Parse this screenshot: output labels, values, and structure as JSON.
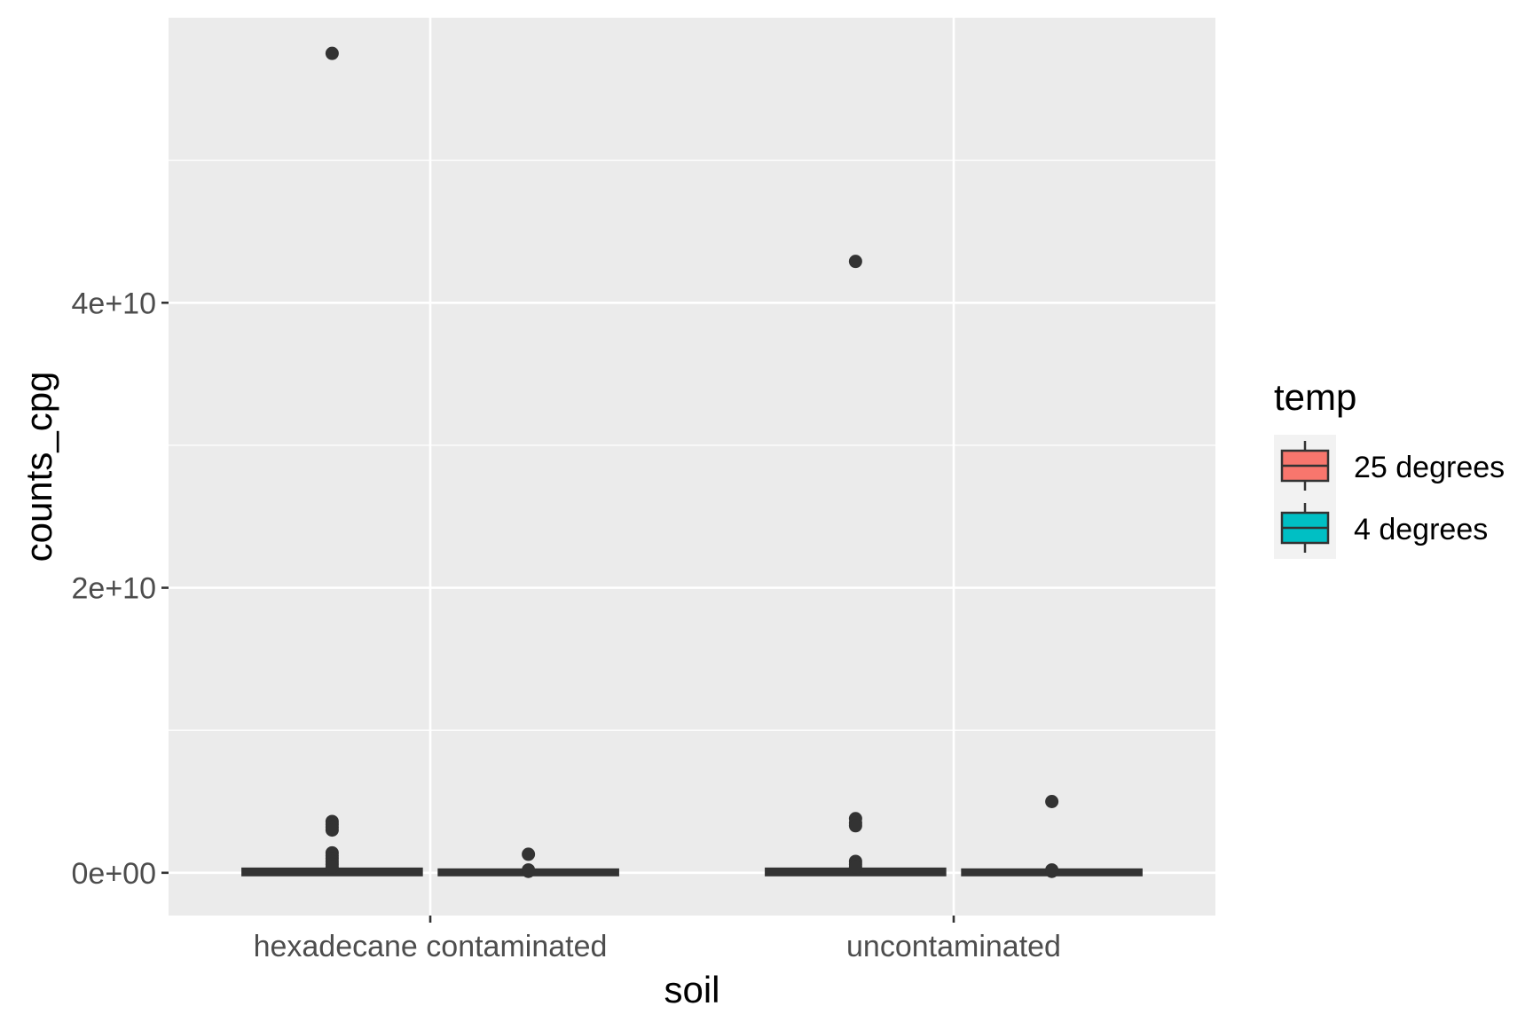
{
  "chart_data": {
    "type": "box",
    "xlabel": "soil",
    "ylabel": "counts_cpg",
    "categories": [
      "hexadecane contaminated",
      "uncontaminated"
    ],
    "ylim": [
      -3000000000,
      60000000000
    ],
    "y_ticks": [
      0,
      20000000000,
      40000000000
    ],
    "y_tick_labels": [
      "0e+00",
      "2e+10",
      "4e+10"
    ],
    "legend": {
      "title": "temp",
      "position": "right",
      "entries": [
        {
          "label": "25 degrees",
          "color": "#F8766D"
        },
        {
          "label": "4 degrees",
          "color": "#00BFC4"
        }
      ]
    },
    "grid": true,
    "boxes": [
      {
        "category": "hexadecane contaminated",
        "group": "25 degrees",
        "q1": 0,
        "median": 50000000,
        "q3": 120000000,
        "whisker_low": 0,
        "whisker_high": 200000000,
        "outliers": [
          57500000000,
          3600000000,
          3400000000,
          3200000000,
          3000000000,
          1400000000,
          1200000000,
          1000000000,
          800000000,
          600000000,
          400000000
        ]
      },
      {
        "category": "hexadecane contaminated",
        "group": "4 degrees",
        "q1": 0,
        "median": 20000000,
        "q3": 60000000,
        "whisker_low": 0,
        "whisker_high": 100000000,
        "outliers": [
          1300000000,
          200000000,
          100000000
        ]
      },
      {
        "category": "uncontaminated",
        "group": "25 degrees",
        "q1": 0,
        "median": 50000000,
        "q3": 120000000,
        "whisker_low": 0,
        "whisker_high": 200000000,
        "outliers": [
          42900000000,
          3800000000,
          3500000000,
          3300000000,
          800000000,
          600000000,
          400000000
        ]
      },
      {
        "category": "uncontaminated",
        "group": "4 degrees",
        "q1": 0,
        "median": 20000000,
        "q3": 60000000,
        "whisker_low": 0,
        "whisker_high": 100000000,
        "outliers": [
          5000000000,
          200000000,
          100000000
        ]
      }
    ]
  }
}
